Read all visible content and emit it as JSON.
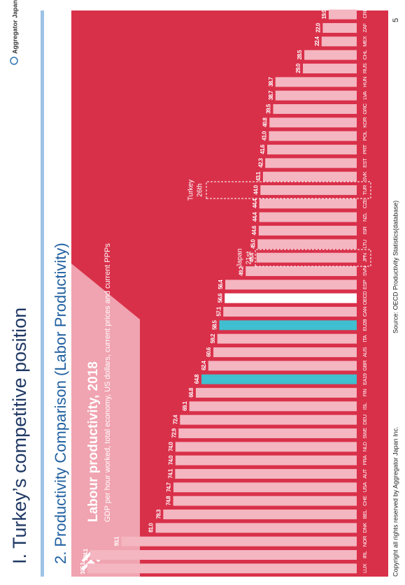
{
  "header": {
    "title": "I.   Turkey’s competitive position",
    "subtitle": "2.  Productivity Comparison (Labor Productivity)",
    "logo": "Aggregator Japan"
  },
  "footer": {
    "copyright": "Copyright all rights reserved by Aggregator Japan Inc.",
    "source": "Source: OECD Productivity Statistics(database)",
    "page": "5"
  },
  "chart_data": {
    "type": "bar",
    "title": "Labour productivity, 2018",
    "subtitle": "GDP per hour worked, total economy, US dollars, current prices and current PPPs",
    "categories": [
      "LUX",
      "IRL",
      "NOR",
      "DNK",
      "BEL",
      "CHE",
      "USA",
      "AUT",
      "FRA",
      "NLD",
      "SWE",
      "DEU",
      "ISL",
      "FIN",
      "EA19",
      "GBR",
      "AUS",
      "ITA",
      "EU28",
      "CAN",
      "OECD",
      "ESP",
      "SVN",
      "JPN",
      "LTU",
      "ISR",
      "NZL",
      "CZE",
      "TUR",
      "SVK",
      "EST",
      "PRT",
      "POL",
      "KOR",
      "GRC",
      "LVA",
      "HUN",
      "RUS",
      "CHL",
      "MEX",
      "ZAF",
      "CRI"
    ],
    "values": [
      105.1,
      104.1,
      93.1,
      81.0,
      78.3,
      74.8,
      74.7,
      74.1,
      74.0,
      74.0,
      72.9,
      72.4,
      69.1,
      66.8,
      64.8,
      62.4,
      60.6,
      59.2,
      58.5,
      57.1,
      56.6,
      56.4,
      49.2,
      45.4,
      45.0,
      44.6,
      44.4,
      44.4,
      44.0,
      43.1,
      42.3,
      41.6,
      41.0,
      40.8,
      39.5,
      38.7,
      38.7,
      29.0,
      28.5,
      22.4,
      22.0,
      19.9
    ],
    "value_labels": [
      "105.1",
      "104.1",
      "93.1",
      "81.0",
      "78.3",
      "74.8",
      "74.7",
      "74.1",
      "74.0",
      "74.0",
      "72.9",
      "72.4",
      "69.1",
      "66.8",
      "64.8",
      "62.4",
      "60.6",
      "59.2",
      "58.5",
      "57.1",
      "56.6",
      "56.4",
      "49.2",
      "45.4",
      "45.0",
      "44.6",
      "44.4",
      "44.4",
      "44.0",
      "43.1",
      "42.3",
      "41.6",
      "41.0",
      "40.8",
      "39.5",
      "38.7",
      "38.7",
      "29.0",
      "28.5",
      "22.4",
      "22.0",
      "19.9"
    ],
    "colors": [
      "#f4b6c0",
      "#f4b6c0",
      "#f4b6c0",
      "#f4b6c0",
      "#f4b6c0",
      "#f4b6c0",
      "#f4b6c0",
      "#f4b6c0",
      "#f4b6c0",
      "#f4b6c0",
      "#f4b6c0",
      "#f4b6c0",
      "#f4b6c0",
      "#f4b6c0",
      "#3fbfcf",
      "#f4b6c0",
      "#f4b6c0",
      "#f4b6c0",
      "#3fbfcf",
      "#f4b6c0",
      "#ffffff",
      "#f4b6c0",
      "#f4b6c0",
      "#f4b6c0",
      "#f4b6c0",
      "#f4b6c0",
      "#f4b6c0",
      "#f4b6c0",
      "#f4b6c0",
      "#f4b6c0",
      "#f4b6c0",
      "#f4b6c0",
      "#f4b6c0",
      "#f4b6c0",
      "#f4b6c0",
      "#f4b6c0",
      "#f4b6c0",
      "#f4b6c0",
      "#f4b6c0",
      "#f4b6c0",
      "#f4b6c0",
      "#f4b6c0"
    ],
    "ylim": [
      10,
      110
    ],
    "annotations": [
      "Japan",
      "21st",
      "Turkey",
      "26th"
    ]
  }
}
